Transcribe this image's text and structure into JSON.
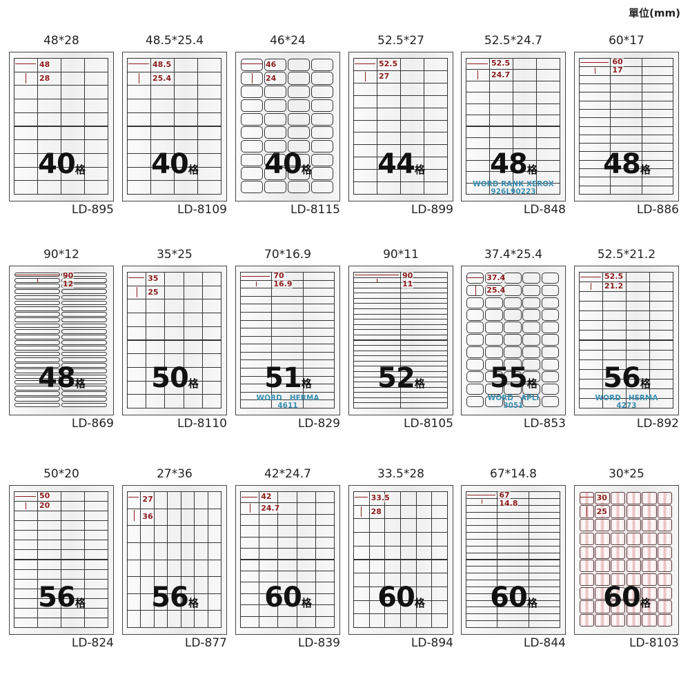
{
  "unit_label": "單位(mm)",
  "count_suffix": "格",
  "accent_color": "#8b1a1a",
  "watermark_color": "#3c8fb0",
  "items": [
    {
      "size": "48*28",
      "w": "48",
      "h": "28",
      "count": "40",
      "code": "LD-895",
      "cols": 4,
      "rows": 10,
      "style": "square"
    },
    {
      "size": "48.5*25.4",
      "w": "48.5",
      "h": "25.4",
      "count": "40",
      "code": "LD-8109",
      "cols": 4,
      "rows": 10,
      "style": "square"
    },
    {
      "size": "46*24",
      "w": "46",
      "h": "24",
      "count": "40",
      "code": "LD-8115",
      "cols": 4,
      "rows": 10,
      "style": "round"
    },
    {
      "size": "52.5*27",
      "w": "52.5",
      "h": "27",
      "count": "44",
      "code": "LD-899",
      "cols": 4,
      "rows": 11,
      "style": "square"
    },
    {
      "size": "52.5*24.7",
      "w": "52.5",
      "h": "24.7",
      "count": "48",
      "code": "LD-848",
      "cols": 4,
      "rows": 12,
      "style": "square",
      "wm1": "WORD RANK XEROX",
      "wm2": "926L90223"
    },
    {
      "size": "60*17",
      "w": "60",
      "h": "17",
      "count": "48",
      "code": "LD-886",
      "cols": 3,
      "rows": 16,
      "style": "square"
    },
    {
      "size": "90*12",
      "w": "90",
      "h": "12",
      "count": "48",
      "code": "LD-869",
      "cols": 2,
      "rows": 24,
      "style": "round"
    },
    {
      "size": "35*25",
      "w": "35",
      "h": "25",
      "count": "50",
      "code": "LD-8110",
      "cols": 5,
      "rows": 10,
      "style": "square"
    },
    {
      "size": "70*16.9",
      "w": "70",
      "h": "16.9",
      "count": "51",
      "code": "LD-829",
      "cols": 3,
      "rows": 17,
      "style": "square",
      "wm1": "WORD   HERMA",
      "wm2": "4611"
    },
    {
      "size": "90*11",
      "w": "90",
      "h": "11",
      "count": "52",
      "code": "LD-8105",
      "cols": 2,
      "rows": 26,
      "style": "square"
    },
    {
      "size": "37.4*25.4",
      "w": "37.4",
      "h": "25.4",
      "count": "55",
      "code": "LD-853",
      "cols": 5,
      "rows": 11,
      "style": "round",
      "wm1": "WORD   APLI",
      "wm2": "3051"
    },
    {
      "size": "52.5*21.2",
      "w": "52.5",
      "h": "21.2",
      "count": "56",
      "code": "LD-892",
      "cols": 4,
      "rows": 14,
      "style": "square",
      "wm1": "WORD   HERMA",
      "wm2": "4273"
    },
    {
      "size": "50*20",
      "w": "50",
      "h": "20",
      "count": "56",
      "code": "LD-824",
      "cols": 4,
      "rows": 14,
      "style": "square"
    },
    {
      "size": "27*36",
      "w": "27",
      "h": "36",
      "count": "56",
      "code": "LD-877",
      "cols": 7,
      "rows": 8,
      "style": "square"
    },
    {
      "size": "42*24.7",
      "w": "42",
      "h": "24.7",
      "count": "60",
      "code": "LD-839",
      "cols": 5,
      "rows": 12,
      "style": "square"
    },
    {
      "size": "33.5*28",
      "w": "33.5",
      "h": "28",
      "count": "60",
      "code": "LD-894",
      "cols": 6,
      "rows": 10,
      "style": "square"
    },
    {
      "size": "67*14.8",
      "w": "67",
      "h": "14.8",
      "count": "60",
      "code": "LD-844",
      "cols": 3,
      "rows": 20,
      "style": "square"
    },
    {
      "size": "30*25",
      "w": "30",
      "h": "25",
      "count": "60",
      "code": "LD-8103",
      "cols": 6,
      "rows": 10,
      "style": "pink"
    }
  ]
}
